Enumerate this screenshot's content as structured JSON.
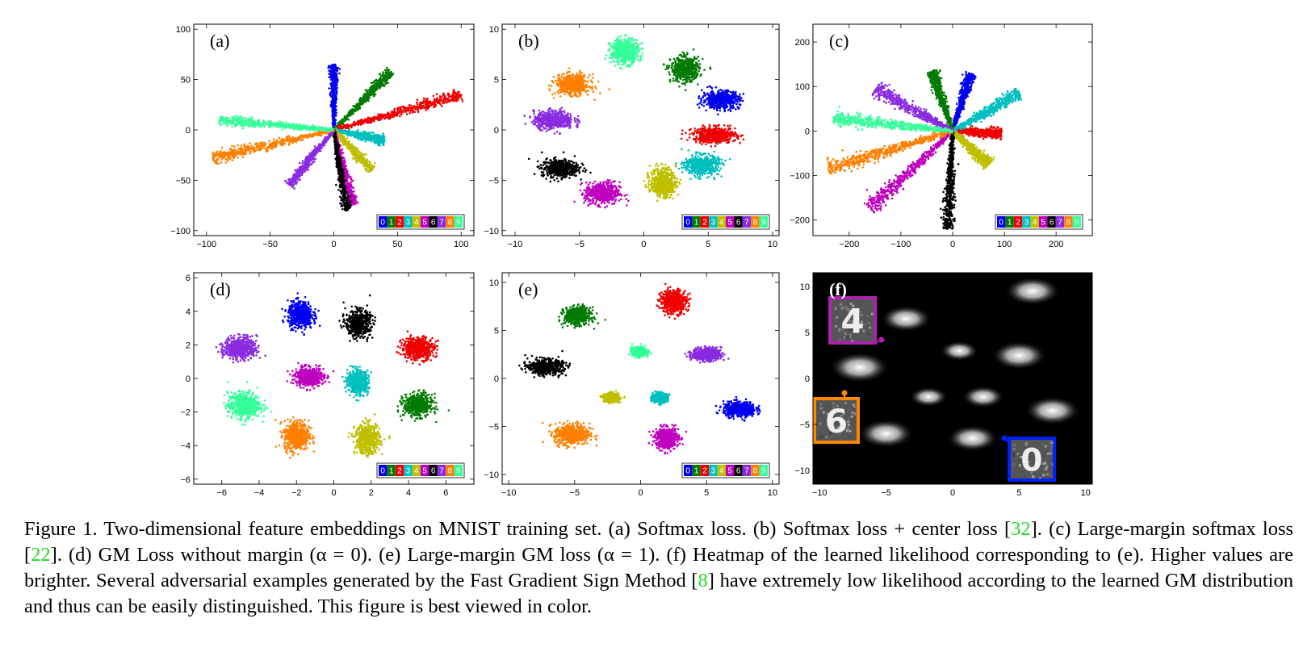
{
  "chart_data": [
    {
      "type": "scatter",
      "panel_label": "(a)",
      "xlim": [
        -110,
        110
      ],
      "ylim": [
        -105,
        105
      ],
      "xticks": [
        -100,
        -50,
        0,
        50,
        100
      ],
      "yticks": [
        -100,
        -50,
        0,
        50,
        100
      ],
      "background": "white",
      "legend": [
        "0",
        "1",
        "2",
        "3",
        "4",
        "5",
        "6",
        "7",
        "8",
        "9"
      ],
      "legend_placement": "bottom-right",
      "clusters": [
        {
          "class": "0",
          "shape": "ray",
          "from": [
            0,
            0
          ],
          "to": [
            0,
            65
          ],
          "width": 5
        },
        {
          "class": "1",
          "shape": "ray",
          "from": [
            0,
            0
          ],
          "to": [
            45,
            58
          ],
          "width": 6
        },
        {
          "class": "2",
          "shape": "ray",
          "from": [
            0,
            0
          ],
          "to": [
            100,
            35
          ],
          "width": 7
        },
        {
          "class": "3",
          "shape": "ray",
          "from": [
            0,
            0
          ],
          "to": [
            40,
            -10
          ],
          "width": 6
        },
        {
          "class": "4",
          "shape": "ray",
          "from": [
            0,
            0
          ],
          "to": [
            30,
            -40
          ],
          "width": 6
        },
        {
          "class": "5",
          "shape": "ray",
          "from": [
            0,
            0
          ],
          "to": [
            15,
            -75
          ],
          "width": 6
        },
        {
          "class": "6",
          "shape": "ray",
          "from": [
            0,
            0
          ],
          "to": [
            10,
            -80
          ],
          "width": 5
        },
        {
          "class": "7",
          "shape": "ray",
          "from": [
            0,
            0
          ],
          "to": [
            -35,
            -55
          ],
          "width": 6
        },
        {
          "class": "8",
          "shape": "ray",
          "from": [
            0,
            0
          ],
          "to": [
            -95,
            -28
          ],
          "width": 7
        },
        {
          "class": "9",
          "shape": "ray",
          "from": [
            0,
            0
          ],
          "to": [
            -90,
            10
          ],
          "width": 6
        }
      ]
    },
    {
      "type": "scatter",
      "panel_label": "(b)",
      "xlim": [
        -11,
        10.5
      ],
      "ylim": [
        -10.5,
        10.5
      ],
      "xticks": [
        -10,
        -5,
        0,
        5,
        10
      ],
      "yticks": [
        -10,
        -5,
        0,
        5,
        10
      ],
      "background": "white",
      "legend": [
        "0",
        "1",
        "2",
        "3",
        "4",
        "5",
        "6",
        "7",
        "8",
        "9"
      ],
      "legend_placement": "bottom-right",
      "clusters": [
        {
          "class": "0",
          "shape": "blob",
          "center": [
            6,
            3
          ],
          "sx": 1.3,
          "sy": 0.8
        },
        {
          "class": "1",
          "shape": "blob",
          "center": [
            3.2,
            6
          ],
          "sx": 1.0,
          "sy": 1.1
        },
        {
          "class": "2",
          "shape": "blob",
          "center": [
            5.5,
            -0.5
          ],
          "sx": 1.5,
          "sy": 0.7
        },
        {
          "class": "3",
          "shape": "blob",
          "center": [
            4.5,
            -3.5
          ],
          "sx": 1.2,
          "sy": 0.9
        },
        {
          "class": "4",
          "shape": "blob",
          "center": [
            1.5,
            -5.2
          ],
          "sx": 0.9,
          "sy": 1.3
        },
        {
          "class": "5",
          "shape": "blob",
          "center": [
            -3.2,
            -6.3
          ],
          "sx": 1.2,
          "sy": 1.0
        },
        {
          "class": "6",
          "shape": "blob",
          "center": [
            -6.5,
            -3.8
          ],
          "sx": 1.3,
          "sy": 0.8
        },
        {
          "class": "7",
          "shape": "blob",
          "center": [
            -7,
            1
          ],
          "sx": 1.4,
          "sy": 0.8
        },
        {
          "class": "8",
          "shape": "blob",
          "center": [
            -5.5,
            4.5
          ],
          "sx": 1.2,
          "sy": 0.9
        },
        {
          "class": "9",
          "shape": "blob",
          "center": [
            -1.5,
            7.8
          ],
          "sx": 1.0,
          "sy": 1.1
        }
      ]
    },
    {
      "type": "scatter",
      "panel_label": "(c)",
      "xlim": [
        -270,
        270
      ],
      "ylim": [
        -235,
        240
      ],
      "xticks": [
        -200,
        -100,
        0,
        100,
        200
      ],
      "yticks": [
        -200,
        -100,
        0,
        100,
        200
      ],
      "background": "white",
      "legend": [
        "0",
        "1",
        "2",
        "3",
        "4",
        "5",
        "6",
        "7",
        "8",
        "9"
      ],
      "legend_placement": "bottom-right",
      "clusters": [
        {
          "class": "0",
          "shape": "ray",
          "from": [
            0,
            0
          ],
          "to": [
            35,
            130
          ],
          "width": 6
        },
        {
          "class": "1",
          "shape": "ray",
          "from": [
            0,
            0
          ],
          "to": [
            -40,
            135
          ],
          "width": 7
        },
        {
          "class": "2",
          "shape": "ray",
          "from": [
            0,
            0
          ],
          "to": [
            95,
            -5
          ],
          "width": 7
        },
        {
          "class": "3",
          "shape": "ray",
          "from": [
            0,
            0
          ],
          "to": [
            130,
            85
          ],
          "width": 8
        },
        {
          "class": "4",
          "shape": "ray",
          "from": [
            0,
            0
          ],
          "to": [
            70,
            -75
          ],
          "width": 7
        },
        {
          "class": "5",
          "shape": "ray",
          "from": [
            0,
            0
          ],
          "to": [
            -160,
            -175
          ],
          "width": 9
        },
        {
          "class": "6",
          "shape": "ray",
          "from": [
            0,
            0
          ],
          "to": [
            -10,
            -220
          ],
          "width": 7
        },
        {
          "class": "7",
          "shape": "ray",
          "from": [
            0,
            0
          ],
          "to": [
            -150,
            95
          ],
          "width": 9
        },
        {
          "class": "8",
          "shape": "ray",
          "from": [
            0,
            0
          ],
          "to": [
            -240,
            -85
          ],
          "width": 9
        },
        {
          "class": "9",
          "shape": "ray",
          "from": [
            0,
            0
          ],
          "to": [
            -230,
            30
          ],
          "width": 8
        }
      ]
    },
    {
      "type": "scatter",
      "panel_label": "(d)",
      "xlim": [
        -7.5,
        7.5
      ],
      "ylim": [
        -6.3,
        6.3
      ],
      "xticks": [
        -6,
        -4,
        -2,
        0,
        2,
        4,
        6
      ],
      "yticks": [
        -6,
        -4,
        -2,
        0,
        2,
        4,
        6
      ],
      "background": "white",
      "legend": [
        "0",
        "1",
        "2",
        "3",
        "4",
        "5",
        "6",
        "7",
        "8",
        "9"
      ],
      "legend_placement": "bottom-right",
      "clusters": [
        {
          "class": "0",
          "shape": "blob",
          "center": [
            -1.8,
            3.8
          ],
          "sx": 0.6,
          "sy": 0.7
        },
        {
          "class": "1",
          "shape": "blob",
          "center": [
            4.5,
            -1.6
          ],
          "sx": 0.7,
          "sy": 0.6
        },
        {
          "class": "2",
          "shape": "blob",
          "center": [
            4.5,
            1.8
          ],
          "sx": 0.8,
          "sy": 0.6
        },
        {
          "class": "3",
          "shape": "blob",
          "center": [
            1.3,
            -0.2
          ],
          "sx": 0.5,
          "sy": 0.6
        },
        {
          "class": "4",
          "shape": "blob",
          "center": [
            1.8,
            -3.6
          ],
          "sx": 0.6,
          "sy": 0.8
        },
        {
          "class": "5",
          "shape": "blob",
          "center": [
            -1.3,
            0.1
          ],
          "sx": 0.7,
          "sy": 0.5
        },
        {
          "class": "6",
          "shape": "blob",
          "center": [
            1.3,
            3.3
          ],
          "sx": 0.6,
          "sy": 0.7
        },
        {
          "class": "7",
          "shape": "blob",
          "center": [
            -5,
            1.8
          ],
          "sx": 0.8,
          "sy": 0.6
        },
        {
          "class": "8",
          "shape": "blob",
          "center": [
            -2,
            -3.4
          ],
          "sx": 0.6,
          "sy": 0.8
        },
        {
          "class": "9",
          "shape": "blob",
          "center": [
            -4.8,
            -1.6
          ],
          "sx": 0.8,
          "sy": 0.7
        }
      ]
    },
    {
      "type": "scatter",
      "panel_label": "(e)",
      "xlim": [
        -10.5,
        10.5
      ],
      "ylim": [
        -11,
        11
      ],
      "xticks": [
        -10,
        -5,
        0,
        5,
        10
      ],
      "yticks": [
        -10,
        -5,
        0,
        5,
        10
      ],
      "background": "white",
      "legend": [
        "0",
        "1",
        "2",
        "3",
        "4",
        "5",
        "6",
        "7",
        "8",
        "9"
      ],
      "legend_placement": "bottom-right",
      "clusters": [
        {
          "class": "0",
          "shape": "blob",
          "center": [
            7.5,
            -3.2
          ],
          "sx": 1.1,
          "sy": 0.7
        },
        {
          "class": "1",
          "shape": "blob",
          "center": [
            -4.8,
            6.5
          ],
          "sx": 0.9,
          "sy": 0.8
        },
        {
          "class": "2",
          "shape": "blob",
          "center": [
            2.5,
            8
          ],
          "sx": 0.9,
          "sy": 1.1
        },
        {
          "class": "3",
          "shape": "blob",
          "center": [
            1.5,
            -2
          ],
          "sx": 0.5,
          "sy": 0.4
        },
        {
          "class": "4",
          "shape": "blob",
          "center": [
            -2.2,
            -2
          ],
          "sx": 0.5,
          "sy": 0.4
        },
        {
          "class": "5",
          "shape": "blob",
          "center": [
            2,
            -6.2
          ],
          "sx": 0.8,
          "sy": 1.0
        },
        {
          "class": "6",
          "shape": "blob",
          "center": [
            -7.2,
            1.2
          ],
          "sx": 1.2,
          "sy": 0.7
        },
        {
          "class": "7",
          "shape": "blob",
          "center": [
            5,
            2.5
          ],
          "sx": 1.0,
          "sy": 0.6
        },
        {
          "class": "8",
          "shape": "blob",
          "center": [
            -5.2,
            -5.8
          ],
          "sx": 1.2,
          "sy": 1.0
        },
        {
          "class": "9",
          "shape": "blob",
          "center": [
            -0.1,
            2.8
          ],
          "sx": 0.5,
          "sy": 0.4
        }
      ]
    },
    {
      "type": "heatmap",
      "panel_label": "(f)",
      "xlim": [
        -10.5,
        10.5
      ],
      "ylim": [
        -11.5,
        11.5
      ],
      "xticks": [
        -10,
        -5,
        0,
        5,
        10
      ],
      "yticks": [
        -10,
        -5,
        0,
        5,
        10
      ],
      "background": "black",
      "peaks": [
        {
          "center": [
            6,
            9.5
          ],
          "s": 1.3
        },
        {
          "center": [
            -3.5,
            6.5
          ],
          "s": 1.2
        },
        {
          "center": [
            0.5,
            3
          ],
          "s": 0.9
        },
        {
          "center": [
            5,
            2.5
          ],
          "s": 1.3
        },
        {
          "center": [
            -7,
            1.2
          ],
          "s": 1.4
        },
        {
          "center": [
            -1.8,
            -2
          ],
          "s": 0.9
        },
        {
          "center": [
            2.3,
            -2
          ],
          "s": 1.0
        },
        {
          "center": [
            7.5,
            -3.5
          ],
          "s": 1.3
        },
        {
          "center": [
            -5,
            -6
          ],
          "s": 1.3
        },
        {
          "center": [
            1.5,
            -6.5
          ],
          "s": 1.2
        }
      ],
      "adversarial_examples": [
        {
          "digit": "4",
          "point": [
            -5.5,
            5.5
          ],
          "frame_color": "#b020b0"
        },
        {
          "digit": "6",
          "point": [
            -8,
            -2
          ],
          "frame_color": "#ff8800"
        },
        {
          "digit": "0",
          "point": [
            4,
            -7.5
          ],
          "frame_color": "#0020ff"
        }
      ]
    }
  ],
  "class_colors": {
    "0": "#0000ee",
    "1": "#007a00",
    "2": "#ee0000",
    "3": "#00bfbf",
    "4": "#bfbf00",
    "5": "#bf00bf",
    "6": "#000000",
    "7": "#8a2be2",
    "8": "#ff7f00",
    "9": "#33ff99"
  },
  "caption": {
    "p1": "Figure 1. Two-dimensional feature embeddings on MNIST training set. (a) Softmax loss. (b) Softmax loss + center loss [",
    "ref1": "32",
    "p2": "]. (c) Large-margin softmax loss [",
    "ref2": "22",
    "p3": "]. (d) GM Loss without margin (α = 0). (e) Large-margin GM loss (α = 1). (f) Heatmap of the learned likelihood corresponding to (e). Higher values are brighter. Several adversarial examples generated by the Fast Gradient Sign Method [",
    "ref3": "8",
    "p4": "] have extremely low likelihood according to the learned GM distribution and thus can be easily distinguished. This figure is best viewed in color."
  }
}
